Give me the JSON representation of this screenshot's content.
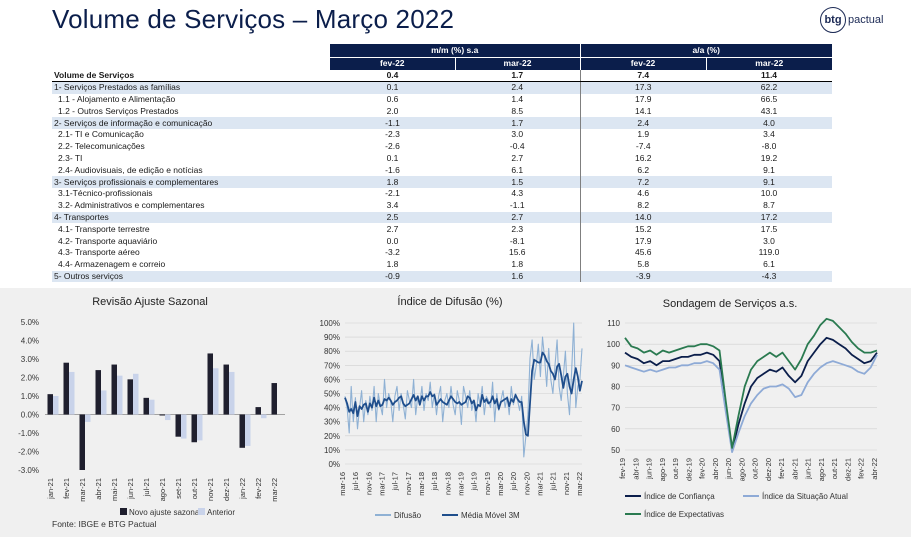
{
  "header": {
    "title": "Volume de Serviços – Março 2022",
    "logo_mark": "btg",
    "logo_text": "pactual"
  },
  "table": {
    "group_mm": "m/m (%) s.a",
    "group_aa": "a/a (%)",
    "periods": [
      "fev-22",
      "mar-22",
      "fev-22",
      "mar-22"
    ],
    "rows": [
      {
        "label": "Volume de Serviços",
        "v": [
          "0.4",
          "1.7",
          "7.4",
          "11.4"
        ],
        "style": "total"
      },
      {
        "label": "1- Serviços Prestados as famílias",
        "v": [
          "0.1",
          "2.4",
          "17.3",
          "62.2"
        ],
        "style": "shade"
      },
      {
        "label": "1.1 - Alojamento e Alimentação",
        "v": [
          "0.6",
          "1.4",
          "17.9",
          "66.5"
        ],
        "style": "sub"
      },
      {
        "label": "1.2 - Outros Serviços Prestados",
        "v": [
          "2.0",
          "8.5",
          "14.1",
          "43.1"
        ],
        "style": "sub"
      },
      {
        "label": "2- Serviços de informação e comunicação",
        "v": [
          "-1.1",
          "1.7",
          "2.4",
          "4.0"
        ],
        "style": "shade"
      },
      {
        "label": "2.1- TI e Comunicação",
        "v": [
          "-2.3",
          "3.0",
          "1.9",
          "3.4"
        ],
        "style": "sub"
      },
      {
        "label": "2.2- Telecomunicações",
        "v": [
          "-2.6",
          "-0.4",
          "-7.4",
          "-8.0"
        ],
        "style": "sub"
      },
      {
        "label": "2.3- TI",
        "v": [
          "0.1",
          "2.7",
          "16.2",
          "19.2"
        ],
        "style": "sub"
      },
      {
        "label": "2.4- Audiovisuais, de edição e notícias",
        "v": [
          "-1.6",
          "6.1",
          "6.2",
          "9.1"
        ],
        "style": "sub"
      },
      {
        "label": "3- Serviços profissionais e complementares",
        "v": [
          "1.8",
          "1.5",
          "7.2",
          "9.1"
        ],
        "style": "shade"
      },
      {
        "label": "3.1-Técnico-profissionais",
        "v": [
          "-2.1",
          "4.3",
          "4.6",
          "10.0"
        ],
        "style": "sub"
      },
      {
        "label": "3.2- Administrativos e complementares",
        "v": [
          "3.4",
          "-1.1",
          "8.2",
          "8.7"
        ],
        "style": "sub"
      },
      {
        "label": "4- Transportes",
        "v": [
          "2.5",
          "2.7",
          "14.0",
          "17.2"
        ],
        "style": "shade"
      },
      {
        "label": "4.1- Transporte terrestre",
        "v": [
          "2.7",
          "2.3",
          "15.2",
          "17.5"
        ],
        "style": "sub"
      },
      {
        "label": "4.2- Transporte aquaviário",
        "v": [
          "0.0",
          "-8.1",
          "17.9",
          "3.0"
        ],
        "style": "sub"
      },
      {
        "label": "4.3- Transporte aéreo",
        "v": [
          "-3.2",
          "15.6",
          "45.6",
          "119.0"
        ],
        "style": "sub"
      },
      {
        "label": "4.4- Armazenagem e correio",
        "v": [
          "1.8",
          "1.8",
          "5.8",
          "6.1"
        ],
        "style": "sub"
      },
      {
        "label": "5- Outros serviços",
        "v": [
          "-0.9",
          "1.6",
          "-3.9",
          "-4.3"
        ],
        "style": "shade"
      }
    ]
  },
  "chart_data": [
    {
      "type": "bar",
      "title": "Revisão Ajuste Sazonal",
      "categories": [
        "jan-21",
        "fev-21",
        "mar-21",
        "abr-21",
        "mai-21",
        "jun-21",
        "jul-21",
        "ago-21",
        "set-21",
        "out-21",
        "nov-21",
        "dez-21",
        "jan-22",
        "fev-22",
        "mar-22"
      ],
      "tick_labels": [
        "jan-21",
        "",
        "fev-21",
        "",
        "mar-21",
        "",
        "abr-21",
        "",
        "mai-21",
        "",
        "jun-21",
        "",
        "jul-21",
        "",
        "ago-21",
        "",
        "set-21",
        "",
        "out-21",
        "",
        "nov-21",
        "",
        "dez-21",
        "",
        "jan-22",
        "",
        "fev-22",
        "",
        "mar-22"
      ],
      "series": [
        {
          "name": "Novo ajuste sazonal",
          "color": "#1f1f2e",
          "values": [
            1.1,
            2.8,
            -3.0,
            2.4,
            2.7,
            1.9,
            0.9,
            0.0,
            -1.2,
            -1.5,
            3.3,
            2.7,
            -1.8,
            0.4,
            1.7
          ]
        },
        {
          "name": "Anterior",
          "color": "#c9d3ea",
          "values": [
            1.0,
            2.3,
            -0.4,
            1.3,
            2.1,
            2.2,
            0.8,
            -0.3,
            -1.3,
            -1.4,
            2.5,
            2.3,
            -1.7,
            -0.2,
            null
          ]
        }
      ],
      "ylim": [
        -3.0,
        5.0
      ],
      "yticks": [
        "5.0%",
        "4.0%",
        "3.0%",
        "2.0%",
        "1.0%",
        "0.0%",
        "-1.0%",
        "-2.0%",
        "-3.0%"
      ]
    },
    {
      "type": "line",
      "title": "Índice de Difusão (%)",
      "tick_labels": [
        "mar-16",
        "jul-16",
        "nov-16",
        "mar-17",
        "jul-17",
        "nov-17",
        "mar-18",
        "jul-18",
        "nov-18",
        "mar-19",
        "jul-19",
        "nov-19",
        "mar-20",
        "jul-20",
        "nov-20",
        "mar-21",
        "jul-21",
        "nov-21",
        "mar-22"
      ],
      "yticks": [
        "100%",
        "90%",
        "80%",
        "70%",
        "60%",
        "50%",
        "40%",
        "30%",
        "20%",
        "10%",
        "0%"
      ],
      "ylim": [
        0,
        100
      ],
      "series": [
        {
          "name": "Difusão",
          "color": "#8fb1d4",
          "values": [
            48,
            40,
            22,
            55,
            30,
            47,
            25,
            40,
            52,
            30,
            45,
            35,
            48,
            38,
            55,
            30,
            50,
            42,
            35,
            60,
            40,
            50,
            45,
            30,
            48,
            55,
            38,
            50,
            42,
            32,
            52,
            45,
            40,
            60,
            35,
            48,
            42,
            55,
            38,
            50,
            45,
            58,
            40,
            50,
            35,
            48,
            55,
            30,
            45,
            50,
            40,
            55,
            42,
            35,
            52,
            45,
            28,
            55,
            48,
            40,
            52,
            38,
            45,
            30,
            50,
            42,
            55,
            35,
            48,
            45,
            40,
            58,
            30,
            50,
            38,
            45,
            52,
            40,
            48,
            35,
            55,
            42,
            50,
            45,
            38,
            48,
            5,
            20,
            35,
            75,
            88,
            60,
            70,
            85,
            62,
            90,
            75,
            55,
            82,
            60,
            50,
            70,
            88,
            55,
            45,
            62,
            80,
            50,
            35,
            65,
            100,
            40,
            55,
            60,
            82
          ]
        },
        {
          "name": "Média Móvel 3M",
          "color": "#1f4e8c",
          "values": [
            47,
            43,
            37,
            39,
            36,
            44,
            34,
            41,
            39,
            42,
            43,
            37,
            43,
            40,
            47,
            41,
            45,
            41,
            42,
            46,
            45,
            47,
            45,
            42,
            44,
            45,
            47,
            48,
            43,
            41,
            42,
            43,
            46,
            49,
            45,
            48,
            42,
            48,
            45,
            48,
            48,
            51,
            48,
            49,
            42,
            44,
            46,
            44,
            43,
            42,
            45,
            48,
            46,
            44,
            43,
            44,
            42,
            43,
            44,
            48,
            47,
            43,
            45,
            38,
            42,
            41,
            49,
            44,
            46,
            43,
            44,
            48,
            43,
            46,
            39,
            44,
            45,
            46,
            47,
            41,
            46,
            44,
            49,
            46,
            44,
            44,
            30,
            21,
            20,
            43,
            66,
            74,
            73,
            72,
            72,
            79,
            77,
            73,
            71,
            66,
            64,
            60,
            69,
            71,
            63,
            54,
            62,
            64,
            55,
            50,
            60,
            68,
            62,
            52,
            59
          ]
        }
      ]
    },
    {
      "type": "line",
      "title": "Sondagem de Serviços a.s.",
      "tick_labels": [
        "fev-19",
        "abr-19",
        "jun-19",
        "ago-19",
        "out-19",
        "dez-19",
        "fev-20",
        "abr-20",
        "jun-20",
        "ago-20",
        "out-20",
        "dez-20",
        "fev-21",
        "abr-21",
        "jun-21",
        "ago-21",
        "out-21",
        "dez-21",
        "fev-22",
        "abr-22"
      ],
      "yticks": [
        "110",
        "100",
        "90",
        "80",
        "70",
        "60",
        "50"
      ],
      "ylim": [
        50,
        110
      ],
      "series": [
        {
          "name": "Índice de Confiança",
          "color": "#0b1e4b",
          "values": [
            96,
            94,
            93,
            91,
            92,
            90,
            92,
            92,
            93,
            94,
            94,
            95,
            95,
            96,
            95,
            92,
            70,
            50,
            62,
            72,
            80,
            84,
            86,
            88,
            87,
            89,
            85,
            82,
            85,
            92,
            96,
            100,
            103,
            102,
            100,
            98,
            95,
            93,
            91,
            92,
            96
          ]
        },
        {
          "name": "Índice da Situação Atual",
          "color": "#8eaad6",
          "values": [
            90,
            89,
            88,
            87,
            88,
            87,
            88,
            89,
            89,
            90,
            90,
            91,
            91,
            92,
            91,
            88,
            68,
            49,
            58,
            66,
            72,
            76,
            79,
            80,
            80,
            81,
            79,
            75,
            76,
            82,
            86,
            89,
            91,
            92,
            91,
            90,
            89,
            87,
            86,
            89,
            95
          ]
        },
        {
          "name": "Índice de Expectativas",
          "color": "#2a7a50",
          "values": [
            103,
            99,
            98,
            96,
            97,
            95,
            97,
            96,
            97,
            98,
            99,
            99,
            100,
            100,
            99,
            97,
            73,
            51,
            66,
            80,
            88,
            92,
            94,
            96,
            94,
            96,
            92,
            88,
            93,
            100,
            104,
            109,
            112,
            111,
            108,
            105,
            101,
            98,
            96,
            96,
            97
          ]
        }
      ]
    }
  ],
  "source": "Fonte: IBGE e BTG Pactual"
}
